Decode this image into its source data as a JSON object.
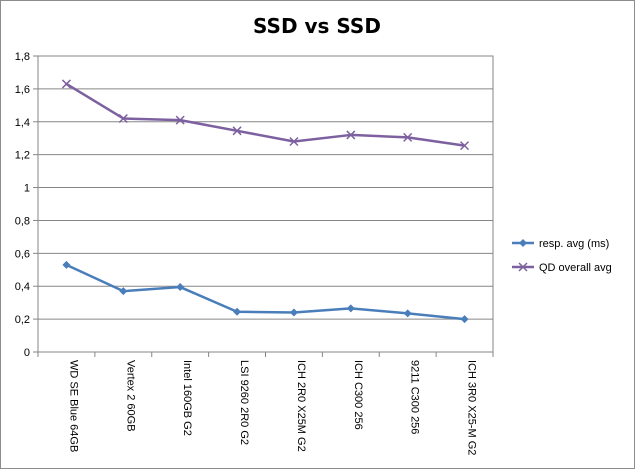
{
  "chart_data": {
    "type": "line",
    "title": "SSD vs SSD",
    "xlabel": "",
    "ylabel": "",
    "categories": [
      "WD SE Blue 64GB",
      "Vertex 2 60GB",
      "Intel 160GB G2",
      "LSI 9260 2R0 G2",
      "ICH 2R0 X25M G2",
      "ICH C300 256",
      "9211 C300 256",
      "ICH 3R0 X25-M G2"
    ],
    "series": [
      {
        "name": "resp. avg (ms)",
        "values": [
          0.53,
          0.37,
          0.395,
          0.245,
          0.24,
          0.265,
          0.235,
          0.2
        ],
        "color": "#4a7ebb",
        "marker": "diamond"
      },
      {
        "name": "QD overall avg",
        "values": [
          1.63,
          1.42,
          1.41,
          1.345,
          1.28,
          1.32,
          1.305,
          1.255
        ],
        "color": "#7d60a0",
        "marker": "x"
      }
    ],
    "ylim": [
      0,
      1.8
    ],
    "yticks": [
      0,
      0.2,
      0.4,
      0.6,
      0.8,
      1,
      1.2,
      1.4,
      1.6,
      1.8
    ],
    "ytick_labels": [
      "0",
      "0,2",
      "0,4",
      "0,6",
      "0,8",
      "1",
      "1,2",
      "1,4",
      "1,6",
      "1,8"
    ],
    "grid": true,
    "legend_position": "right"
  }
}
